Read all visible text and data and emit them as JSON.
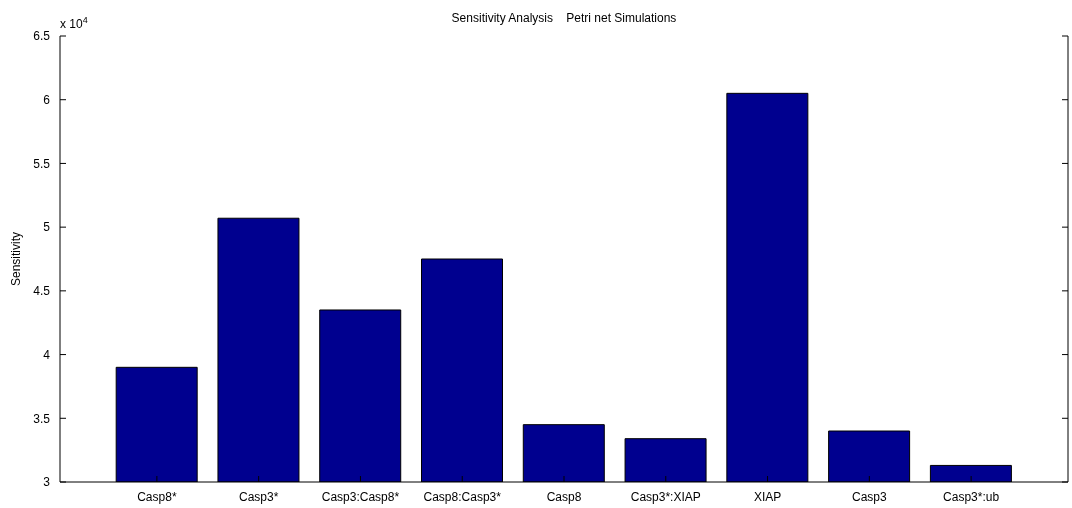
{
  "chart_data": {
    "type": "bar",
    "title": "Sensitivity Analysis    Petri net Simulations",
    "ylabel": "Sensitivity",
    "annotations": [
      "x 10$^{4}$"
    ],
    "categories": [
      "Casp8*",
      "Casp3*",
      "Casp3:Casp8*",
      "Casp8:Casp3*",
      "Casp8",
      "Casp3*:XIAP",
      "XIAP",
      "Casp3",
      "Casp3*:ub"
    ],
    "values": [
      3.9,
      5.07,
      4.35,
      4.75,
      3.45,
      3.34,
      6.05,
      3.4,
      3.13
    ],
    "color": "#00008f",
    "ylim": [
      3,
      6.5
    ],
    "yticks": [
      3,
      3.5,
      4,
      4.5,
      5,
      5.5,
      6,
      6.5
    ],
    "grid": false
  }
}
